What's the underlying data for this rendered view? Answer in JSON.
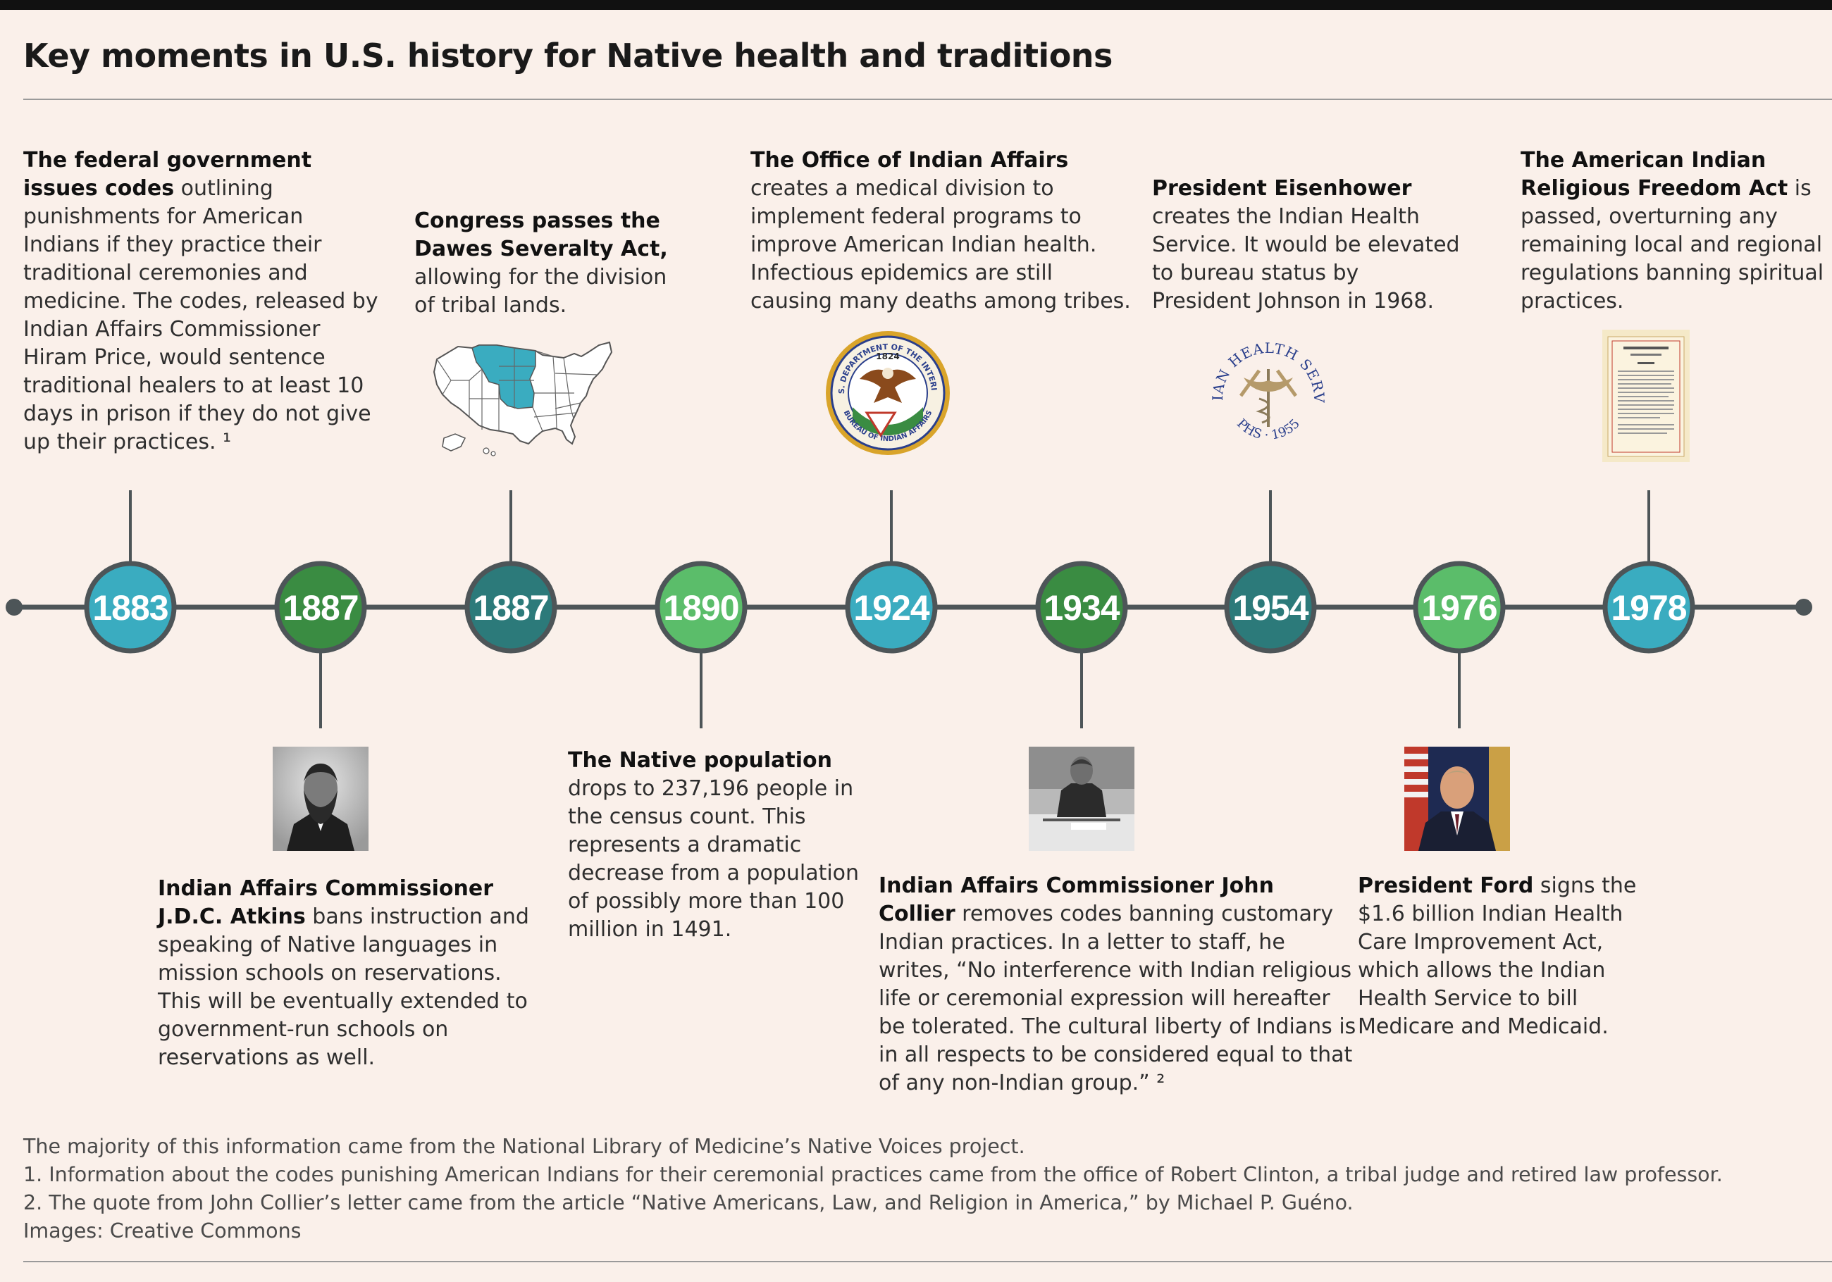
{
  "title": "Key moments in U.S. history for Native health and traditions",
  "colors": {
    "teal": "#3aacc0",
    "dark_green": "#3a8c42",
    "dark_teal": "#2c7a7a",
    "light_green": "#5bbd6a",
    "line": "#4d5558",
    "background": "#faf0ea"
  },
  "timeline": [
    {
      "year": "1883",
      "color": "teal"
    },
    {
      "year": "1887",
      "color": "dark_green"
    },
    {
      "year": "1887",
      "color": "dark_teal"
    },
    {
      "year": "1890",
      "color": "light_green"
    },
    {
      "year": "1924",
      "color": "teal"
    },
    {
      "year": "1934",
      "color": "dark_green"
    },
    {
      "year": "1954",
      "color": "dark_teal"
    },
    {
      "year": "1976",
      "color": "light_green"
    },
    {
      "year": "1978",
      "color": "teal"
    }
  ],
  "events": {
    "e1883": {
      "lines": [
        {
          "bold": "The federal government",
          "rest": ""
        },
        {
          "bold": "issues codes",
          "rest": " outlining"
        },
        {
          "bold": "",
          "rest": "punishments for American"
        },
        {
          "bold": "",
          "rest": "Indians if they practice their"
        },
        {
          "bold": "",
          "rest": "traditional ceremonies and"
        },
        {
          "bold": "",
          "rest": "medicine. The codes, released by"
        },
        {
          "bold": "",
          "rest": "Indian Affairs Commissioner"
        },
        {
          "bold": "",
          "rest": "Hiram Price, would sentence"
        },
        {
          "bold": "",
          "rest": "traditional healers to at least 10"
        },
        {
          "bold": "",
          "rest": "days in prison if they do not give"
        },
        {
          "bold": "",
          "rest": "up their practices. ¹"
        }
      ]
    },
    "e1887a": {
      "lines": [
        {
          "bold": "Indian Affairs Commissioner",
          "rest": ""
        },
        {
          "bold": "J.D.C. Atkins",
          "rest": " bans instruction and"
        },
        {
          "bold": "",
          "rest": "speaking of Native languages in"
        },
        {
          "bold": "",
          "rest": "mission schools on reservations."
        },
        {
          "bold": "",
          "rest": "This will be eventually extended to"
        },
        {
          "bold": "",
          "rest": "government-run schools on"
        },
        {
          "bold": "",
          "rest": "reservations as well."
        }
      ]
    },
    "e1887b": {
      "lines": [
        {
          "bold": "Congress passes the",
          "rest": ""
        },
        {
          "bold": "Dawes Severalty Act,",
          "rest": ""
        },
        {
          "bold": "",
          "rest": "allowing for the division"
        },
        {
          "bold": "",
          "rest": "of tribal lands."
        }
      ]
    },
    "e1890": {
      "lines": [
        {
          "bold": "The Native population",
          "rest": ""
        },
        {
          "bold": "",
          "rest": "drops to 237,196 people in"
        },
        {
          "bold": "",
          "rest": "the census count. This"
        },
        {
          "bold": "",
          "rest": "represents a dramatic"
        },
        {
          "bold": "",
          "rest": "decrease from a population"
        },
        {
          "bold": "",
          "rest": "of possibly more than 100"
        },
        {
          "bold": "",
          "rest": "million in 1491."
        }
      ]
    },
    "e1924": {
      "lines": [
        {
          "bold": "The Office of Indian Affairs",
          "rest": ""
        },
        {
          "bold": "",
          "rest": "creates a medical division to"
        },
        {
          "bold": "",
          "rest": "implement federal programs to"
        },
        {
          "bold": "",
          "rest": "improve American Indian health."
        },
        {
          "bold": "",
          "rest": "Infectious epidemics are still"
        },
        {
          "bold": "",
          "rest": "causing many deaths among tribes."
        }
      ]
    },
    "e1934": {
      "lines": [
        {
          "bold": "Indian Affairs Commissioner John",
          "rest": ""
        },
        {
          "bold": "Collier",
          "rest": " removes codes banning customary"
        },
        {
          "bold": "",
          "rest": "Indian practices. In a letter to staff, he"
        },
        {
          "bold": "",
          "rest": "writes, “No interference with Indian religious"
        },
        {
          "bold": "",
          "rest": "life or ceremonial expression will hereafter"
        },
        {
          "bold": "",
          "rest": "be tolerated. The cultural liberty of Indians is"
        },
        {
          "bold": "",
          "rest": "in all respects to be considered equal to that"
        },
        {
          "bold": "",
          "rest": "of any non-Indian group.” ²"
        }
      ]
    },
    "e1954": {
      "lines": [
        {
          "bold": "President Eisenhower",
          "rest": ""
        },
        {
          "bold": "",
          "rest": "creates the Indian Health"
        },
        {
          "bold": "",
          "rest": "Service. It would be elevated"
        },
        {
          "bold": "",
          "rest": "to bureau status by"
        },
        {
          "bold": "",
          "rest": "President Johnson in 1968."
        }
      ]
    },
    "e1976": {
      "lines": [
        {
          "bold": "President Ford",
          "rest": " signs the"
        },
        {
          "bold": "",
          "rest": "$1.6 billion Indian Health"
        },
        {
          "bold": "",
          "rest": "Care Improvement Act,"
        },
        {
          "bold": "",
          "rest": "which allows the Indian"
        },
        {
          "bold": "",
          "rest": "Health Service to bill"
        },
        {
          "bold": "",
          "rest": "Medicare and Medicaid."
        }
      ]
    },
    "e1978": {
      "lines": [
        {
          "bold": "The American Indian",
          "rest": ""
        },
        {
          "bold": "Religious Freedom Act",
          "rest": " is"
        },
        {
          "bold": "",
          "rest": "passed, overturning any"
        },
        {
          "bold": "",
          "rest": "remaining local and regional"
        },
        {
          "bold": "",
          "rest": "regulations banning spiritual"
        },
        {
          "bold": "",
          "rest": "practices."
        }
      ]
    }
  },
  "images": {
    "doi_seal": {
      "top": "U.S. DEPARTMENT OF THE INTERIOR",
      "year": "1824",
      "bottom": "BUREAU OF INDIAN AFFAIRS"
    },
    "ihs_seal": {
      "top": "INDIAN HEALTH SERVICE",
      "bottom": "PHS · 1955"
    }
  },
  "footer": {
    "line1": "The majority of this information came from the National Library of Medicine’s Native Voices project.",
    "line2": "1. Information about the codes punishing American Indians for their ceremonial practices came from the office of Robert Clinton, a tribal judge and retired law professor.",
    "line3": "2. The quote from John Collier’s letter came from the article “Native Americans, Law, and Religion in America,” by Michael P. Guéno.",
    "line4": "Images: Creative Commons"
  }
}
